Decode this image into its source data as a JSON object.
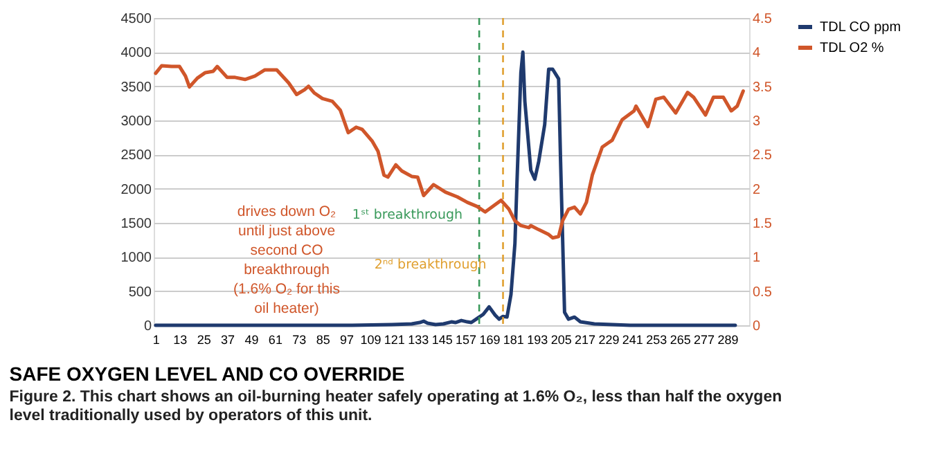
{
  "chart_data": {
    "type": "line",
    "title": "SAFE OXYGEN LEVEL AND CO OVERRIDE",
    "subtitle": "Figure 2. This chart shows an oil-burning heater safely operating at 1.6% O₂, less than half the oxygen level traditionally used by operators of this unit.",
    "annotations": [
      "drives down O₂ until just above second CO breakthrough (1.6% O₂ for this oil heater)"
    ],
    "series": [
      {
        "name": "TDL CO ppm",
        "color": "#1f3a6e",
        "x": [
          1,
          20,
          40,
          60,
          80,
          100,
          120,
          130,
          134,
          136,
          138,
          142,
          146,
          150,
          152,
          155,
          158,
          160,
          163,
          166,
          169,
          172,
          174,
          176,
          178,
          180,
          182,
          183,
          185,
          186,
          187,
          190,
          192,
          194,
          197,
          199,
          201,
          204,
          205,
          207,
          209,
          212,
          215,
          222,
          240,
          260,
          280,
          293
        ],
        "values": [
          0,
          0,
          0,
          0,
          0,
          0,
          10,
          20,
          40,
          60,
          30,
          10,
          20,
          50,
          40,
          70,
          50,
          40,
          100,
          160,
          270,
          150,
          90,
          130,
          120,
          450,
          1200,
          2070,
          3700,
          4000,
          3280,
          2270,
          2140,
          2400,
          2940,
          3750,
          3750,
          3610,
          2400,
          190,
          90,
          120,
          50,
          20,
          0,
          0,
          0,
          0
        ]
      },
      {
        "name": "TDL O2 %",
        "color": "#d0562a",
        "axis": "y2",
        "x": [
          1,
          4,
          9,
          13,
          16,
          18,
          22,
          26,
          30,
          32,
          37,
          41,
          46,
          51,
          56,
          62,
          68,
          72,
          76,
          78,
          81,
          85,
          90,
          94,
          98,
          102,
          105,
          110,
          113,
          116,
          118,
          122,
          125,
          130,
          133,
          136,
          141,
          147,
          153,
          158,
          163,
          167,
          175,
          179,
          182,
          185,
          189,
          190,
          194,
          199,
          201,
          204,
          206,
          209,
          212,
          215,
          218,
          221,
          226,
          229,
          231,
          236,
          242,
          243,
          247,
          249,
          253,
          257,
          263,
          269,
          272,
          278,
          282,
          287,
          291,
          294,
          297
        ],
        "values": [
          3.69,
          3.8,
          3.79,
          3.79,
          3.65,
          3.49,
          3.62,
          3.7,
          3.72,
          3.79,
          3.63,
          3.63,
          3.6,
          3.65,
          3.74,
          3.74,
          3.55,
          3.38,
          3.45,
          3.5,
          3.4,
          3.32,
          3.28,
          3.15,
          2.82,
          2.9,
          2.87,
          2.7,
          2.55,
          2.2,
          2.17,
          2.35,
          2.26,
          2.18,
          2.17,
          1.9,
          2.06,
          1.95,
          1.88,
          1.8,
          1.74,
          1.66,
          1.83,
          1.7,
          1.53,
          1.46,
          1.43,
          1.46,
          1.4,
          1.33,
          1.28,
          1.3,
          1.53,
          1.7,
          1.73,
          1.63,
          1.8,
          2.2,
          2.61,
          2.67,
          2.71,
          3.01,
          3.14,
          3.21,
          3.01,
          2.91,
          3.31,
          3.34,
          3.11,
          3.41,
          3.34,
          3.08,
          3.34,
          3.34,
          3.14,
          3.21,
          3.43
        ]
      }
    ],
    "ref_lines": [
      {
        "axis": "x",
        "value": 164,
        "label": "1ˢᵗ breakthrough",
        "color": "#3a9a5b",
        "line_style": "dashed"
      },
      {
        "axis": "x",
        "value": 176,
        "label": "2ⁿᵈ breakthrough",
        "color": "#e0a030",
        "line_style": "dashed"
      }
    ],
    "xlim": [
      0,
      300
    ],
    "xticks": [
      1,
      13,
      25,
      37,
      49,
      61,
      73,
      85,
      97,
      109,
      121,
      133,
      145,
      157,
      169,
      181,
      193,
      205,
      217,
      229,
      241,
      253,
      265,
      277,
      289
    ],
    "ylim": [
      0,
      4500
    ],
    "yticks": [
      0,
      500,
      1000,
      1500,
      2000,
      2500,
      3000,
      3500,
      4000,
      4500
    ],
    "y2lim": [
      0,
      4.5
    ],
    "y2ticks": [
      0,
      0.5,
      1,
      1.5,
      2,
      2.5,
      3,
      3.5,
      4,
      4.5
    ],
    "grid": "y",
    "legend": "right",
    "line_style": "solid",
    "marker": "none"
  }
}
